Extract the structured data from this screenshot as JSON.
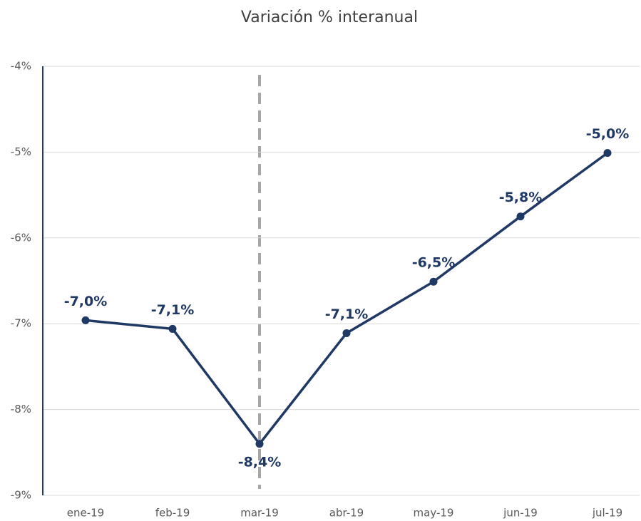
{
  "chart_data": {
    "type": "line",
    "title": "Variación % interanual",
    "categories": [
      "ene-19",
      "feb-19",
      "mar-19",
      "abr-19",
      "may-19",
      "jun-19",
      "jul-19"
    ],
    "series": [
      {
        "name": "Variación % interanual",
        "color": "#1f3864",
        "values": [
          -6.96,
          -7.06,
          -8.4,
          -7.11,
          -6.51,
          -5.75,
          -5.01
        ],
        "value_labels": [
          "-7,0%",
          "-7,1%",
          "-8,4%",
          "-7,1%",
          "-6,5%",
          "-5,8%",
          "-5,0%"
        ]
      }
    ],
    "ylim": [
      -9,
      -4
    ],
    "yticks": [
      {
        "value": -9,
        "label": "-9%"
      },
      {
        "value": -8,
        "label": "-8%"
      },
      {
        "value": -7,
        "label": "-7%"
      },
      {
        "value": -6,
        "label": "-6%"
      },
      {
        "value": -5,
        "label": "-5%"
      },
      {
        "value": -4,
        "label": "-4%"
      }
    ],
    "grid": true
  }
}
